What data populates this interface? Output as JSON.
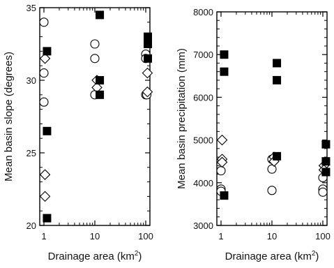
{
  "chart_data": [
    {
      "type": "scatter",
      "x_scale": "log",
      "xlim": [
        1,
        100
      ],
      "ylim": [
        20,
        35
      ],
      "xlabel": "Drainage area (km",
      "xlabel_sup": "2",
      "xlabel_end": ")",
      "ylabel": "Mean basin slope (degrees)",
      "x_ticks": [
        1,
        10,
        100
      ],
      "x_tick_labels": [
        "1",
        "10",
        "100"
      ],
      "y_ticks": [
        20,
        25,
        30,
        35
      ],
      "y_tick_labels": [
        "20",
        "25",
        "30",
        "35"
      ],
      "series": [
        {
          "marker": "circle-open",
          "points": [
            [
              1,
              34
            ],
            [
              1,
              30.5
            ],
            [
              1,
              28.5
            ],
            [
              10,
              32.5
            ],
            [
              10,
              31.5
            ],
            [
              10,
              29
            ],
            [
              100,
              31.8
            ],
            [
              100,
              31.5
            ],
            [
              100,
              29
            ],
            [
              105,
              29
            ]
          ]
        },
        {
          "marker": "diamond-open",
          "points": [
            [
              1.05,
              31.5
            ],
            [
              1.05,
              23.5
            ],
            [
              1.05,
              22
            ],
            [
              11,
              30
            ],
            [
              11,
              29.5
            ],
            [
              108,
              30.5
            ],
            [
              108,
              29.2
            ]
          ]
        },
        {
          "marker": "square-filled",
          "points": [
            [
              1.15,
              32
            ],
            [
              1.15,
              26.5
            ],
            [
              1.15,
              20.5
            ],
            [
              12.5,
              34.5
            ],
            [
              12.5,
              30
            ],
            [
              12.5,
              29
            ],
            [
              110,
              33
            ],
            [
              110,
              32.5
            ],
            [
              110,
              31.5
            ]
          ]
        }
      ]
    },
    {
      "type": "scatter",
      "x_scale": "log",
      "xlim": [
        1,
        100
      ],
      "ylim": [
        3000,
        8000
      ],
      "xlabel": "Drainage area (km",
      "xlabel_sup": "2",
      "xlabel_end": ")",
      "ylabel": "Mean basin precipitation (mm)",
      "x_ticks": [
        1,
        10,
        100
      ],
      "x_tick_labels": [
        "1",
        "10",
        "100"
      ],
      "y_ticks": [
        3000,
        4000,
        5000,
        6000,
        7000,
        8000
      ],
      "y_tick_labels": [
        "3000",
        "4000",
        "5000",
        "6000",
        "7000",
        "8000"
      ],
      "series": [
        {
          "marker": "circle-open",
          "points": [
            [
              1,
              4280
            ],
            [
              1,
              3850
            ],
            [
              1,
              3800
            ],
            [
              10,
              4550
            ],
            [
              10,
              4320
            ],
            [
              10,
              3820
            ],
            [
              100,
              4120
            ],
            [
              100,
              3850
            ],
            [
              100,
              3780
            ]
          ]
        },
        {
          "marker": "diamond-open",
          "points": [
            [
              1.05,
              5000
            ],
            [
              1.05,
              4550
            ],
            [
              1.05,
              4480
            ],
            [
              11,
              4600
            ],
            [
              11,
              4500
            ],
            [
              105,
              4400
            ],
            [
              105,
              4300
            ]
          ]
        },
        {
          "marker": "square-filled",
          "points": [
            [
              1.15,
              7000
            ],
            [
              1.15,
              6600
            ],
            [
              1.15,
              3700
            ],
            [
              12.5,
              6800
            ],
            [
              12.5,
              6400
            ],
            [
              12.5,
              4620
            ],
            [
              115,
              4900
            ],
            [
              115,
              4500
            ],
            [
              115,
              4250
            ]
          ]
        }
      ]
    }
  ]
}
